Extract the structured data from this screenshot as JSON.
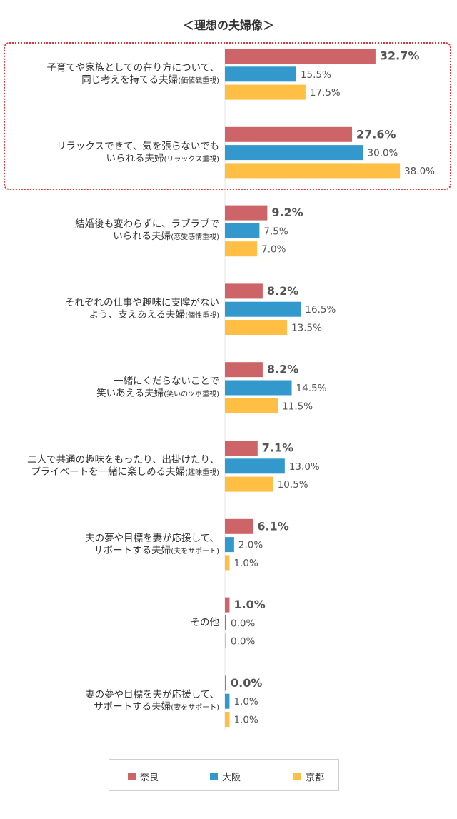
{
  "chart_data": {
    "type": "bar",
    "orientation": "horizontal",
    "title": "＜理想の夫婦像＞",
    "categories": [
      {
        "line1": "子育てや家族としての在り方について、",
        "line2": "同じ考えを持てる夫婦",
        "sub": "(価値観重視)"
      },
      {
        "line1": "リラックスできて、気を張らないでも",
        "line2": "いられる夫婦",
        "sub": "(リラックス重視)"
      },
      {
        "line1": "結婚後も変わらずに、ラブラブで",
        "line2": "いられる夫婦",
        "sub": "(恋愛感情重視)"
      },
      {
        "line1": "それぞれの仕事や趣味に支障がない",
        "line2": "よう、支えあえる夫婦",
        "sub": "(個性重視)"
      },
      {
        "line1": "一緒にくだらないことで",
        "line2": "笑いあえる夫婦",
        "sub": "(笑いのツボ重視)"
      },
      {
        "line1": "二人で共通の趣味をもったり、出掛けたり、",
        "line2": "プライベートを一緒に楽しめる夫婦",
        "sub": "(趣味重視)"
      },
      {
        "line1": "夫の夢や目標を妻が応援して、",
        "line2": "サポートする夫婦",
        "sub": "(夫をサポート)"
      },
      {
        "line1": "",
        "line2": "その他",
        "sub": ""
      },
      {
        "line1": "妻の夢や目標を夫が応援して、",
        "line2": "サポートする夫婦",
        "sub": "(妻をサポート)"
      }
    ],
    "series": [
      {
        "name": "奈良",
        "color": "#cd6467",
        "values": [
          32.7,
          27.6,
          9.2,
          8.2,
          8.2,
          7.1,
          6.1,
          1.0,
          0.0
        ]
      },
      {
        "name": "大阪",
        "color": "#3399cc",
        "values": [
          15.5,
          30.0,
          7.5,
          16.5,
          14.5,
          13.0,
          2.0,
          0.0,
          1.0
        ]
      },
      {
        "name": "京都",
        "color": "#ffbf45",
        "values": [
          17.5,
          38.0,
          7.0,
          13.5,
          11.5,
          10.5,
          1.0,
          0.0,
          1.0
        ]
      }
    ],
    "value_suffix": "%",
    "xlim": [
      0,
      40
    ],
    "legend_position": "bottom",
    "highlighted_categories": [
      0,
      1
    ],
    "highlight_color": "#e0353a"
  }
}
